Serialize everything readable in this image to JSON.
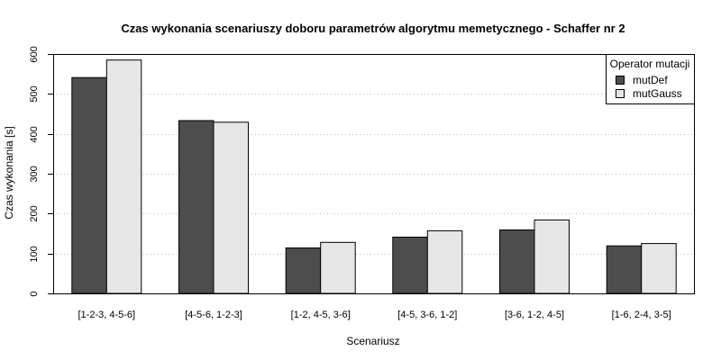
{
  "chart_data": {
    "type": "bar",
    "title": "Czas wykonania scenariuszy doboru parametrów algorytmu memetycznego - Schaffer nr 2",
    "xlabel": "Scenariusz",
    "ylabel": "Czas wykonania [s]",
    "ylim": [
      0,
      600
    ],
    "yticks": [
      0,
      100,
      200,
      300,
      400,
      500,
      600
    ],
    "grid": "horizontal-dotted",
    "categories": [
      "[1-2-3, 4-5-6]",
      "[4-5-6, 1-2-3]",
      "[1-2, 4-5, 3-6]",
      "[4-5, 3-6, 1-2]",
      "[3-6, 1-2, 4-5]",
      "[1-6, 2-4, 3-5]"
    ],
    "series": [
      {
        "name": "mutDef",
        "color": "#4d4d4d",
        "values": [
          541,
          433,
          114,
          141,
          159,
          119
        ]
      },
      {
        "name": "mutGauss",
        "color": "#e6e6e6",
        "values": [
          585,
          429,
          128,
          157,
          184,
          125
        ]
      }
    ],
    "legend": {
      "title": "Operator mutacji",
      "placement": "top-right"
    }
  }
}
